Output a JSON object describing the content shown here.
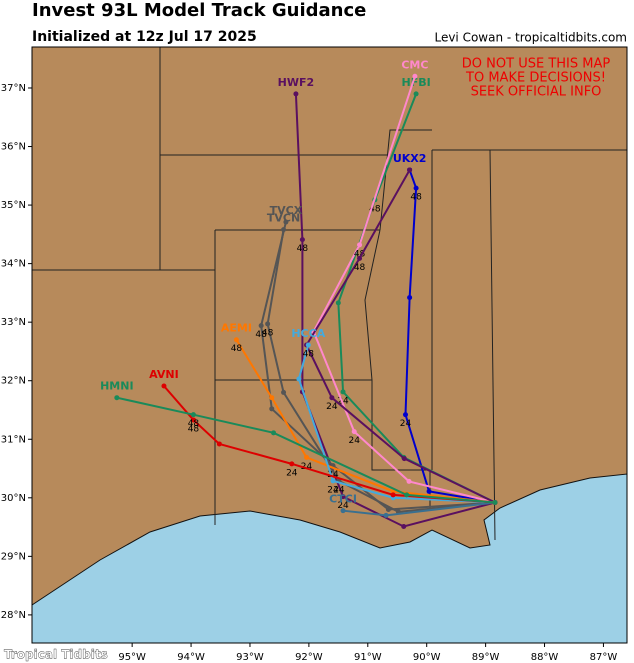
{
  "header": {
    "title": "Invest 93L Model Track Guidance",
    "subtitle": "Initialized at 12z Jul 17 2025",
    "credit": "Levi Cowan - tropicaltidbits.com"
  },
  "warning": [
    "DO NOT USE THIS MAP",
    "TO MAKE DECISIONS!",
    "SEEK OFFICIAL INFO"
  ],
  "watermark": "Tropical Tidbits",
  "map": {
    "xlim": [
      -96.7,
      -86.6
    ],
    "ylim": [
      27.52,
      37.7
    ],
    "xticks": [
      {
        "value": -95,
        "label": "95°W"
      },
      {
        "value": -94,
        "label": "94°W"
      },
      {
        "value": -93,
        "label": "93°W"
      },
      {
        "value": -92,
        "label": "92°W"
      },
      {
        "value": -91,
        "label": "91°W"
      },
      {
        "value": -90,
        "label": "90°W"
      },
      {
        "value": -89,
        "label": "89°W"
      },
      {
        "value": -88,
        "label": "88°W"
      },
      {
        "value": -87,
        "label": "87°W"
      }
    ],
    "yticks": [
      {
        "value": 28,
        "label": "28°N"
      },
      {
        "value": 29,
        "label": "29°N"
      },
      {
        "value": 30,
        "label": "30°N"
      },
      {
        "value": 31,
        "label": "31°N"
      },
      {
        "value": 32,
        "label": "32°N"
      },
      {
        "value": 33,
        "label": "33°N"
      },
      {
        "value": 34,
        "label": "34°N"
      },
      {
        "value": 35,
        "label": "35°N"
      },
      {
        "value": 36,
        "label": "36°N"
      },
      {
        "value": 37,
        "label": "37°N"
      }
    ],
    "tracks": [
      {
        "name": "UKX2",
        "color": "#0000cc",
        "lon": [
          -88.84,
          -89.96,
          -90.36,
          -90.29,
          -90.18,
          -90.29
        ],
        "lat": [
          29.92,
          30.11,
          31.42,
          33.42,
          35.29,
          35.6
        ],
        "hours": [
          null,
          null,
          24,
          null,
          48,
          null
        ]
      },
      {
        "name": "HFBI",
        "color": "#1a8a5a",
        "lon": [
          -88.84,
          -90.39,
          -91.42,
          -91.5,
          -90.88,
          -90.18
        ],
        "lat": [
          29.92,
          30.69,
          31.81,
          33.33,
          35.09,
          36.9
        ],
        "hours": [
          null,
          null,
          24,
          null,
          48,
          null
        ]
      },
      {
        "name": "CMC",
        "color": "#ff88cc",
        "lon": [
          -88.84,
          -90.3,
          -91.23,
          -91.92,
          -91.14,
          -90.2
        ],
        "lat": [
          29.92,
          30.28,
          31.13,
          32.84,
          34.32,
          37.2
        ],
        "hours": [
          null,
          null,
          24,
          null,
          48,
          null
        ]
      },
      {
        "name": "HWF2",
        "color": "#5a1060",
        "lon": [
          -88.84,
          -90.39,
          -91.42,
          -92.11,
          -92.11,
          -92.22
        ],
        "lat": [
          29.92,
          29.51,
          30.02,
          31.81,
          34.41,
          36.9
        ],
        "hours": [
          null,
          null,
          24,
          null,
          48,
          null
        ]
      },
      {
        "color": "#5a1060",
        "lon": [
          -88.84,
          -90.38,
          -91.61,
          -92.04,
          -91.14,
          -90.29
        ],
        "lat": [
          29.92,
          30.67,
          31.71,
          32.61,
          34.09,
          35.6
        ],
        "hours": [
          null,
          null,
          24,
          null,
          48,
          null
        ]
      },
      {
        "name": "TVCN",
        "color": "#555555",
        "lon": [
          -88.84,
          -90.48,
          -91.49,
          -92.43,
          -92.7,
          -92.43
        ],
        "lat": [
          29.92,
          29.76,
          30.29,
          31.8,
          32.97,
          34.58
        ],
        "hours": [
          null,
          null,
          24,
          null,
          48,
          null
        ]
      },
      {
        "name": "TVCX",
        "color": "#555555",
        "lon": [
          -88.84,
          -90.65,
          -91.59,
          -92.63,
          -92.81,
          -92.39
        ],
        "lat": [
          29.92,
          29.8,
          30.55,
          31.52,
          32.94,
          34.71
        ],
        "hours": [
          null,
          null,
          24,
          null,
          48,
          null
        ]
      },
      {
        "name": "AEMI",
        "color": "#ff7700",
        "lon": [
          -88.84,
          -90.57,
          -92.04,
          -92.63,
          -93.23
        ],
        "lat": [
          29.92,
          30.11,
          30.69,
          31.71,
          32.7
        ],
        "hours": [
          null,
          null,
          24,
          null,
          48
        ]
      },
      {
        "name": "HCCA",
        "color": "#44aadd",
        "lon": [
          -88.84,
          -90.57,
          -91.59,
          -92.17,
          -92.01
        ],
        "lat": [
          29.92,
          30.0,
          30.29,
          32.03,
          32.61
        ],
        "hours": [
          null,
          null,
          24,
          null,
          48
        ]
      },
      {
        "name": "CTCI",
        "color": "#3a7090",
        "lon": [
          -88.84,
          -90.69,
          -91.42
        ],
        "lat": [
          29.92,
          29.7,
          29.78
        ],
        "hours": [
          null,
          null,
          null
        ]
      },
      {
        "name": "AVNI",
        "color": "#dd0000",
        "lon": [
          -88.84,
          -90.57,
          -92.29,
          -93.52,
          -93.96,
          -94.46
        ],
        "lat": [
          29.92,
          30.05,
          30.58,
          30.92,
          31.33,
          31.91
        ],
        "hours": [
          null,
          null,
          24,
          null,
          48,
          null
        ]
      },
      {
        "name": "HMNI",
        "color": "#1a8a5a",
        "lon": [
          -88.84,
          -90.34,
          -92.6,
          -93.96,
          -95.26
        ],
        "lat": [
          29.92,
          30.05,
          31.11,
          31.42,
          31.71
        ],
        "hours": [
          null,
          null,
          null,
          48,
          null
        ]
      }
    ]
  }
}
